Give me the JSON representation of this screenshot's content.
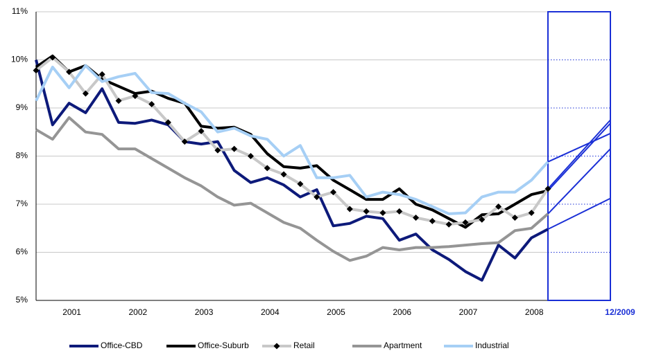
{
  "chart_data": {
    "type": "line",
    "categories": [
      null,
      null,
      "2001",
      null,
      null,
      null,
      "2002",
      null,
      null,
      null,
      "2003",
      null,
      null,
      null,
      "2004",
      null,
      null,
      null,
      "2005",
      null,
      null,
      null,
      "2006",
      null,
      null,
      null,
      "2007",
      null,
      null,
      null,
      "2008",
      null
    ],
    "series": [
      {
        "name": "Office-CBD",
        "color": "#0d1a7a",
        "forecast": 7.12,
        "values": [
          10.0,
          8.65,
          9.1,
          8.9,
          9.4,
          8.7,
          8.68,
          8.75,
          8.65,
          8.3,
          8.25,
          8.3,
          7.7,
          7.45,
          7.55,
          7.4,
          7.15,
          7.3,
          6.55,
          6.6,
          6.75,
          6.7,
          6.25,
          6.38,
          6.05,
          5.85,
          5.6,
          5.42,
          6.15,
          5.88,
          6.3,
          6.48
        ]
      },
      {
        "name": "Office-Suburb",
        "color": "#000000",
        "forecast": 8.68,
        "values": [
          9.85,
          10.08,
          9.75,
          9.88,
          9.6,
          9.45,
          9.3,
          9.35,
          9.2,
          9.1,
          8.62,
          8.58,
          8.6,
          8.45,
          8.05,
          7.78,
          7.75,
          7.8,
          7.5,
          7.3,
          7.1,
          7.1,
          7.32,
          7.0,
          6.88,
          6.7,
          6.52,
          6.78,
          6.8,
          7.0,
          7.2,
          7.28
        ]
      },
      {
        "name": "Retail",
        "color": "#c8c8c8",
        "marker": "diamond",
        "forecast": 8.75,
        "values": [
          9.78,
          10.05,
          9.75,
          9.3,
          9.7,
          9.15,
          9.25,
          9.08,
          8.7,
          8.3,
          8.52,
          8.12,
          8.15,
          8.0,
          7.75,
          7.62,
          7.42,
          7.15,
          7.25,
          6.9,
          6.85,
          6.82,
          6.85,
          6.72,
          6.65,
          6.58,
          6.62,
          6.68,
          6.95,
          6.72,
          6.82,
          7.32
        ]
      },
      {
        "name": "Apartment",
        "color": "#959595",
        "forecast": 8.15,
        "values": [
          8.55,
          8.35,
          8.8,
          8.5,
          8.45,
          8.15,
          8.15,
          7.95,
          7.75,
          7.55,
          7.38,
          7.15,
          6.98,
          7.02,
          6.82,
          6.62,
          6.5,
          6.25,
          6.02,
          5.83,
          5.92,
          6.1,
          6.05,
          6.1,
          6.1,
          6.12,
          6.15,
          6.18,
          6.2,
          6.45,
          6.5,
          6.8
        ]
      },
      {
        "name": "Industrial",
        "color": "#a6cff5",
        "forecast": 8.47,
        "values": [
          9.15,
          9.85,
          9.42,
          9.88,
          9.55,
          9.65,
          9.72,
          9.32,
          9.3,
          9.1,
          8.92,
          8.5,
          8.58,
          8.42,
          8.35,
          8.0,
          8.22,
          7.55,
          7.55,
          7.6,
          7.15,
          7.25,
          7.2,
          7.1,
          6.95,
          6.8,
          6.82,
          7.15,
          7.25,
          7.25,
          7.5,
          7.88
        ]
      }
    ],
    "forecast_label": "12/2009",
    "forecast_color": "#1a2fd6",
    "ylim": [
      5,
      11
    ],
    "yticks": [
      {
        "value": 5,
        "label": "5%"
      },
      {
        "value": 6,
        "label": "6%"
      },
      {
        "value": 7,
        "label": "7%"
      },
      {
        "value": 8,
        "label": "8%"
      },
      {
        "value": 9,
        "label": "9%"
      },
      {
        "value": 10,
        "label": "10%"
      },
      {
        "value": 11,
        "label": "11%"
      }
    ],
    "grid": true,
    "legend": "bottom"
  }
}
